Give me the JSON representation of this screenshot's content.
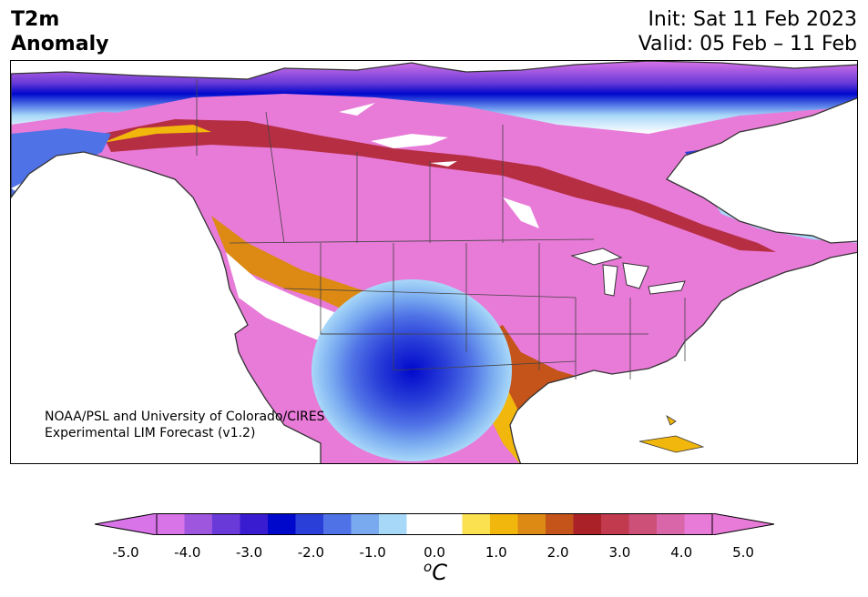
{
  "title": {
    "line1": "T2m",
    "line2": "Anomaly",
    "init": "Init: Sat 11 Feb 2023",
    "valid": "Valid: 05 Feb – 11 Feb"
  },
  "credit": {
    "line1": "NOAA/PSL and University of Colorado/CIRES",
    "line2": "Experimental LIM Forecast (v1.2)"
  },
  "colorbar": {
    "ticks": [
      "-5.0",
      "-4.0",
      "-3.0",
      "-2.0",
      "-1.0",
      "0.0",
      "1.0",
      "2.0",
      "3.0",
      "4.0",
      "5.0"
    ],
    "units_base": "C",
    "units_sup": "o",
    "min_color": "#d873e8",
    "max_color": "#e87ad8",
    "colors": [
      "#d873e8",
      "#9f56de",
      "#6a3ad8",
      "#3a1cd0",
      "#0008cc",
      "#2a3fd8",
      "#4f72e6",
      "#79aaf0",
      "#a8d8f8",
      "#ffffff",
      "#ffffff",
      "#fbe050",
      "#f2b70c",
      "#dc8a14",
      "#c4541a",
      "#ab2128",
      "#c13a4e",
      "#cd5079",
      "#d866a8",
      "#e87ad8"
    ]
  },
  "map": {
    "region": "North America",
    "ocean_color": "#ffffff",
    "coastline_color": "#333333"
  }
}
